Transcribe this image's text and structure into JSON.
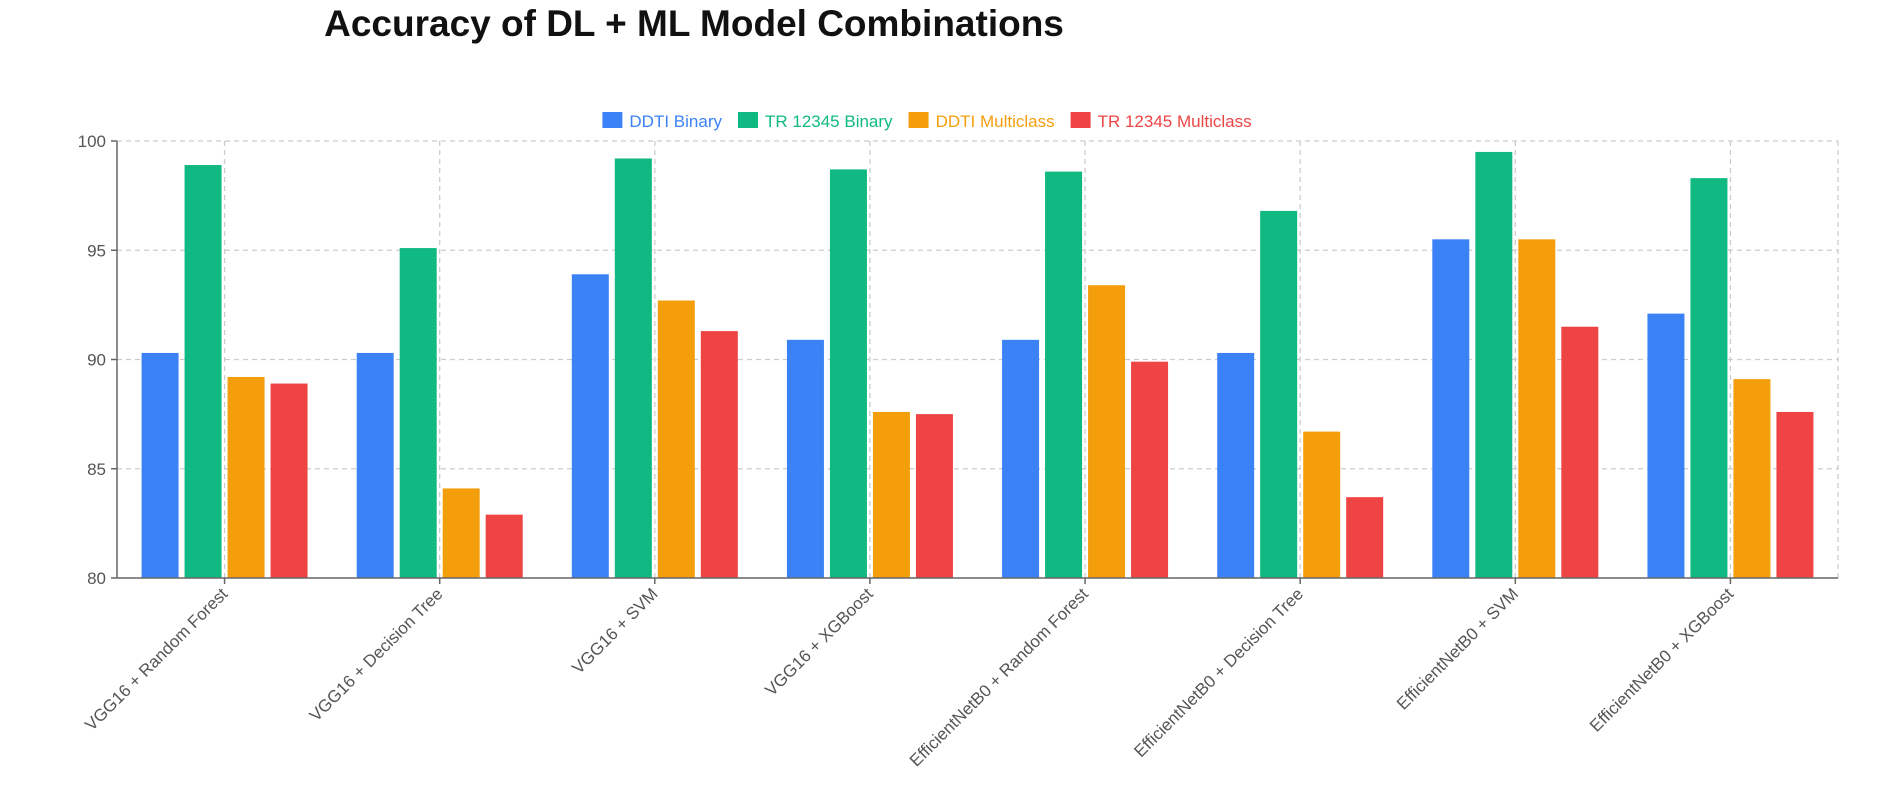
{
  "chart_data": {
    "type": "bar",
    "title": "Accuracy of DL + ML Model Combinations",
    "xlabel": "",
    "ylabel": "",
    "ylim": [
      80,
      100
    ],
    "yticks": [
      80,
      85,
      90,
      95,
      100
    ],
    "grid": true,
    "legend_position": "top-center",
    "categories": [
      "VGG16 + Random Forest",
      "VGG16 + Decision Tree",
      "VGG16 + SVM",
      "VGG16 + XGBoost",
      "EfficientNetB0 + Random Forest",
      "EfficientNetB0 + Decision Tree",
      "EfficientNetB0 + SVM",
      "EfficientNetB0 + XGBoost"
    ],
    "series": [
      {
        "name": "DDTI Binary",
        "color": "#3b82f6",
        "values": [
          90.3,
          90.3,
          93.9,
          90.9,
          90.9,
          90.3,
          95.5,
          92.1
        ]
      },
      {
        "name": "TR 12345 Binary",
        "color": "#10b981",
        "values": [
          98.9,
          95.1,
          99.2,
          98.7,
          98.6,
          96.8,
          99.5,
          98.3
        ]
      },
      {
        "name": "DDTI Multiclass",
        "color": "#f59e0b",
        "values": [
          89.2,
          84.1,
          92.7,
          87.6,
          93.4,
          86.7,
          95.5,
          89.1
        ]
      },
      {
        "name": "TR 12345 Multiclass",
        "color": "#ef4444",
        "values": [
          88.9,
          82.9,
          91.3,
          87.5,
          89.9,
          83.7,
          91.5,
          87.6
        ]
      }
    ]
  }
}
